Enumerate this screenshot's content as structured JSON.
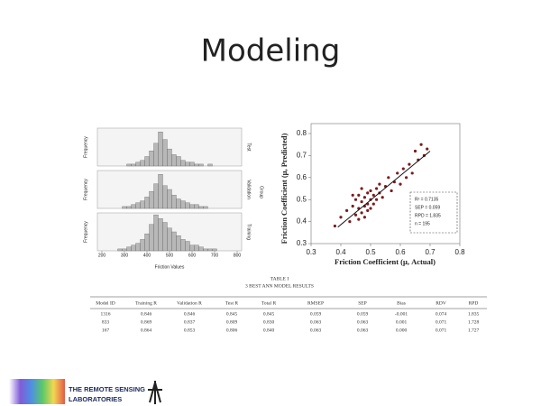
{
  "title": "Modeling",
  "histogram_labels": {
    "group": "Group",
    "x_label": "Friction Values"
  },
  "chart_data": [
    {
      "type": "histogram",
      "name": "Test",
      "y_label": "Frequency",
      "color": "#b8b8b8",
      "xlim": [
        180,
        820
      ],
      "ylim": [
        0,
        20
      ],
      "bins": [
        250,
        270,
        290,
        310,
        330,
        350,
        370,
        390,
        410,
        430,
        450,
        470,
        490,
        510,
        530,
        550,
        570,
        590,
        610,
        630,
        650,
        670,
        690,
        710,
        730
      ],
      "counts": [
        0,
        0,
        0,
        1,
        1,
        2,
        3,
        5,
        8,
        12,
        18,
        14,
        9,
        6,
        5,
        3,
        2,
        2,
        1,
        1,
        0,
        1,
        0,
        0
      ]
    },
    {
      "type": "histogram",
      "name": "Validation",
      "y_label": "Frequency",
      "color": "#b8b8b8",
      "xlim": [
        180,
        820
      ],
      "ylim": [
        0,
        20
      ],
      "bins": [
        250,
        270,
        290,
        310,
        330,
        350,
        370,
        390,
        410,
        430,
        450,
        470,
        490,
        510,
        530,
        550,
        570,
        590,
        610,
        630,
        650,
        670,
        690,
        710,
        730
      ],
      "counts": [
        0,
        0,
        1,
        1,
        2,
        3,
        4,
        6,
        9,
        13,
        18,
        12,
        10,
        7,
        5,
        4,
        3,
        2,
        2,
        1,
        1,
        0,
        0,
        0
      ]
    },
    {
      "type": "histogram",
      "name": "Training",
      "y_label": "Frequency",
      "color": "#b8b8b8",
      "xlim": [
        180,
        820
      ],
      "ylim": [
        0,
        20
      ],
      "xticks": [
        200,
        300,
        400,
        500,
        600,
        700,
        800
      ],
      "bins": [
        250,
        270,
        290,
        310,
        330,
        350,
        370,
        390,
        410,
        430,
        450,
        470,
        490,
        510,
        530,
        550,
        570,
        590,
        610,
        630,
        650,
        670,
        690,
        710,
        730
      ],
      "counts": [
        0,
        1,
        1,
        2,
        3,
        4,
        6,
        9,
        14,
        19,
        17,
        15,
        12,
        10,
        8,
        6,
        5,
        3,
        3,
        2,
        1,
        1,
        1,
        0
      ]
    },
    {
      "type": "scatter",
      "x_label": "Friction Coefficient (μ, Actual)",
      "y_label": "Friction Coefficient (μ, Predicted)",
      "color": "#7b1c1c",
      "xlim": [
        0.3,
        0.8
      ],
      "ylim": [
        0.3,
        0.8
      ],
      "xticks": [
        0.3,
        0.4,
        0.5,
        0.6,
        0.7,
        0.8
      ],
      "yticks": [
        0.3,
        0.4,
        0.5,
        0.6,
        0.7,
        0.8
      ],
      "x": [
        0.38,
        0.4,
        0.42,
        0.43,
        0.44,
        0.45,
        0.45,
        0.46,
        0.46,
        0.47,
        0.47,
        0.47,
        0.48,
        0.48,
        0.48,
        0.49,
        0.49,
        0.49,
        0.5,
        0.5,
        0.5,
        0.51,
        0.51,
        0.52,
        0.52,
        0.53,
        0.53,
        0.54,
        0.55,
        0.56,
        0.57,
        0.58,
        0.59,
        0.6,
        0.61,
        0.62,
        0.63,
        0.64,
        0.65,
        0.66,
        0.67,
        0.68,
        0.69,
        0.44,
        0.46
      ],
      "y": [
        0.38,
        0.42,
        0.45,
        0.4,
        0.47,
        0.43,
        0.5,
        0.46,
        0.52,
        0.44,
        0.49,
        0.55,
        0.47,
        0.51,
        0.42,
        0.48,
        0.53,
        0.45,
        0.5,
        0.46,
        0.54,
        0.52,
        0.48,
        0.55,
        0.5,
        0.53,
        0.57,
        0.51,
        0.56,
        0.6,
        0.54,
        0.58,
        0.62,
        0.57,
        0.64,
        0.6,
        0.66,
        0.62,
        0.72,
        0.68,
        0.75,
        0.7,
        0.73,
        0.52,
        0.41
      ],
      "fit_line": {
        "x": [
          0.39,
          0.7
        ],
        "y": [
          0.375,
          0.72
        ]
      },
      "annotation": [
        "R² = 0.7135",
        "SEP = 0.059",
        "RPD = 1.835",
        "n = 195"
      ]
    }
  ],
  "table": {
    "title": "TABLE I",
    "subtitle": "3 BEST ANN MODEL RESULTS",
    "headers": [
      "Model ID",
      "Training R",
      "Validation R",
      "Test R",
      "Total R",
      "RMSEP",
      "SEP",
      "Bias",
      "RDV",
      "RPD"
    ],
    "rows": [
      [
        "1316",
        "0.846",
        "0.846",
        "0.845",
        "0.845",
        "0.059",
        "0.059",
        "-0.001",
        "0.074",
        "1.835"
      ],
      [
        "833",
        "0.869",
        "0.837",
        "0.809",
        "0.830",
        "0.063",
        "0.063",
        "0.001",
        "0.071",
        "1.728"
      ],
      [
        "167",
        "0.864",
        "0.853",
        "0.806",
        "0.840",
        "0.063",
        "0.063",
        "0.000",
        "0.071",
        "1.727"
      ]
    ]
  },
  "logo": {
    "line1": "THE REMOTE SENSING",
    "line2": "LABORATORIES"
  }
}
